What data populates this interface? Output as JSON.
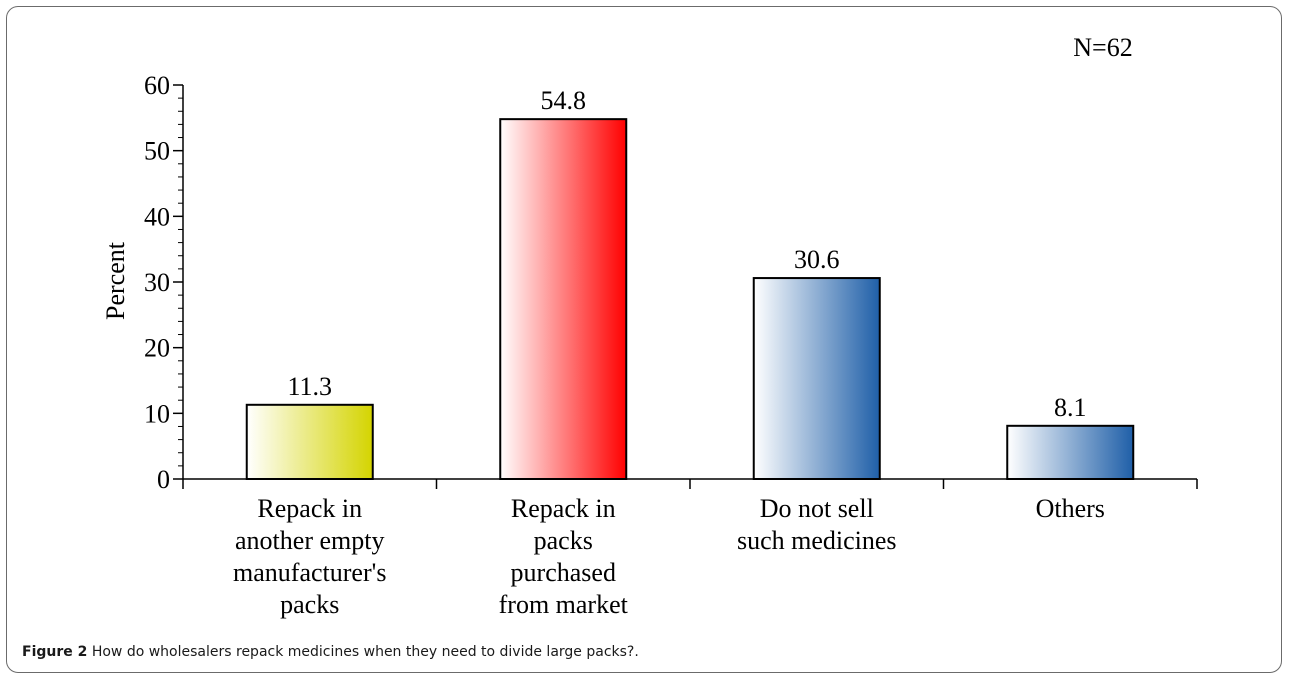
{
  "chart_data": {
    "type": "bar",
    "categories": [
      [
        "Repack in",
        "another empty",
        "manufacturer's",
        "packs"
      ],
      [
        "Repack in",
        "packs",
        "purchased",
        "from market"
      ],
      [
        "Do not sell",
        "such medicines"
      ],
      [
        "Others"
      ]
    ],
    "values": [
      11.3,
      54.8,
      30.6,
      8.1
    ],
    "value_labels": [
      "11.3",
      "54.8",
      "30.6",
      "8.1"
    ],
    "bar_colors": [
      "#d4d400",
      "#ff0000",
      "#1f5fa8",
      "#1f5fa8"
    ],
    "ylabel": "Percent",
    "xlabel": "",
    "ylim": [
      0,
      60
    ],
    "yticks": [
      0,
      10,
      20,
      30,
      40,
      50,
      60
    ],
    "annotation": "N=62",
    "grid": false
  },
  "caption": {
    "label": "Figure 2",
    "text": "How do wholesalers repack medicines when they need to divide large packs?",
    "suffix": "."
  }
}
